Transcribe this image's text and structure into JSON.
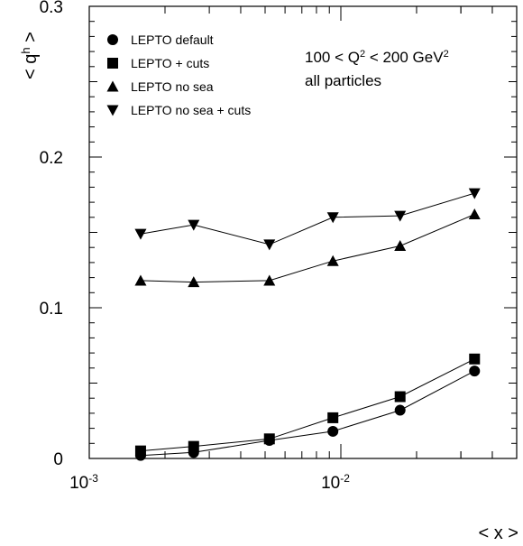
{
  "chart_data": {
    "type": "scatter",
    "title": "",
    "xlabel": "< x >",
    "ylabel": "< q^h >",
    "ylabel_parts": {
      "pre": "< q",
      "sup": "h",
      "post": " >"
    },
    "xscale": "log",
    "xlim": [
      0.001,
      0.05
    ],
    "ylim": [
      0,
      0.3
    ],
    "grid": false,
    "legend_position": "top-left",
    "x_ticks": [
      {
        "value": 0.001,
        "base": "10",
        "exp": "-3"
      },
      {
        "value": 0.01,
        "base": "10",
        "exp": "-2"
      }
    ],
    "y_ticks": [
      {
        "value": 0,
        "label": "0"
      },
      {
        "value": 0.1,
        "label": "0.1"
      },
      {
        "value": 0.2,
        "label": "0.2"
      },
      {
        "value": 0.3,
        "label": "0.3"
      }
    ],
    "annotation": {
      "line1": {
        "a": "100 < Q",
        "sup": "2",
        "b": " < 200 GeV",
        "sup2": "2"
      },
      "line2": "all particles"
    },
    "series": [
      {
        "name": "LEPTO default",
        "marker": "circle",
        "x": [
          0.0016,
          0.0026,
          0.0052,
          0.0093,
          0.0172,
          0.034
        ],
        "y": [
          0.002,
          0.004,
          0.012,
          0.018,
          0.032,
          0.058
        ]
      },
      {
        "name": "LEPTO + cuts",
        "marker": "square",
        "x": [
          0.0016,
          0.0026,
          0.0052,
          0.0093,
          0.0172,
          0.034
        ],
        "y": [
          0.005,
          0.008,
          0.013,
          0.027,
          0.041,
          0.066
        ]
      },
      {
        "name": "LEPTO no sea",
        "marker": "triangle-up",
        "x": [
          0.0016,
          0.0026,
          0.0052,
          0.0093,
          0.0172,
          0.034
        ],
        "y": [
          0.118,
          0.117,
          0.118,
          0.131,
          0.141,
          0.162
        ]
      },
      {
        "name": "LEPTO no sea + cuts",
        "marker": "triangle-down",
        "x": [
          0.0016,
          0.0026,
          0.0052,
          0.0093,
          0.0172,
          0.034
        ],
        "y": [
          0.149,
          0.155,
          0.142,
          0.16,
          0.161,
          0.176
        ]
      }
    ]
  }
}
